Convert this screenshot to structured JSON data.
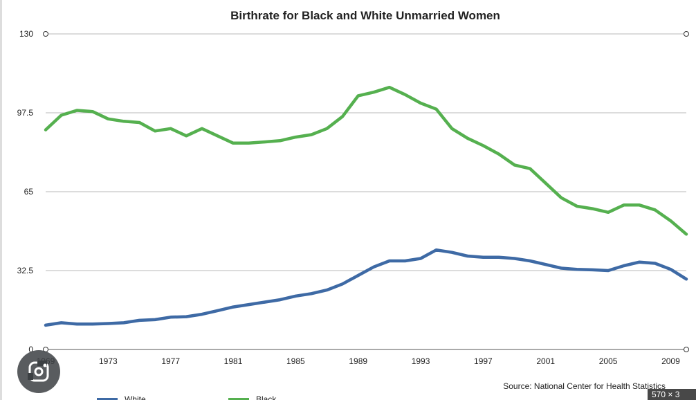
{
  "chart_data": {
    "type": "line",
    "title": "Birthrate for Black and White Unmarried Women",
    "source": "Source: National Center for Health Statistics",
    "yticks": [
      "0",
      "32.5",
      "65",
      "97.5",
      "130"
    ],
    "ylim": [
      0,
      130
    ],
    "xlim": [
      1969,
      2010
    ],
    "xticks": [
      "1969",
      "1973",
      "1977",
      "1981",
      "1985",
      "1989",
      "1993",
      "1997",
      "2001",
      "2005",
      "2009"
    ],
    "grid": true,
    "legend": "bottom",
    "series": [
      {
        "name": "Black",
        "color": "#55b04f",
        "x": [
          1969,
          1970,
          1971,
          1972,
          1973,
          1974,
          1975,
          1976,
          1977,
          1978,
          1979,
          1980,
          1981,
          1982,
          1983,
          1984,
          1985,
          1986,
          1987,
          1988,
          1989,
          1990,
          1991,
          1992,
          1993,
          1994,
          1995,
          1996,
          1997,
          1998,
          1999,
          2000,
          2001,
          2002,
          2003,
          2004,
          2005,
          2006,
          2007,
          2008,
          2009,
          2010
        ],
        "values": [
          90.5,
          96.5,
          98.5,
          98,
          95,
          94,
          93.5,
          90,
          91,
          88,
          91,
          88,
          85,
          85,
          85.5,
          86,
          87.5,
          88.5,
          91,
          96,
          104.5,
          106,
          108,
          105,
          101.5,
          99,
          91,
          87,
          84,
          80.5,
          76,
          74.5,
          68.5,
          62.5,
          59,
          58,
          56.5,
          59.5,
          59.5,
          57.5,
          53,
          47.5
        ]
      },
      {
        "name": "White",
        "color": "#3e6aa5",
        "x": [
          1969,
          1970,
          1971,
          1972,
          1973,
          1974,
          1975,
          1976,
          1977,
          1978,
          1979,
          1980,
          1981,
          1982,
          1983,
          1984,
          1985,
          1986,
          1987,
          1988,
          1989,
          1990,
          1991,
          1992,
          1993,
          1994,
          1995,
          1996,
          1997,
          1998,
          1999,
          2000,
          2001,
          2002,
          2003,
          2004,
          2005,
          2006,
          2007,
          2008,
          2009,
          2010
        ],
        "values": [
          10,
          11,
          10.5,
          10.5,
          10.7,
          11,
          12,
          12.3,
          13.3,
          13.5,
          14.5,
          16,
          17.5,
          18.5,
          19.5,
          20.5,
          22,
          23,
          24.5,
          27,
          30.5,
          34,
          36.5,
          36.5,
          37.5,
          41,
          40,
          38.5,
          38,
          38,
          37.5,
          36.5,
          35,
          33.5,
          33,
          32.8,
          32.5,
          34.5,
          36,
          35.5,
          33,
          29
        ]
      }
    ]
  },
  "badge": "570 × 3"
}
